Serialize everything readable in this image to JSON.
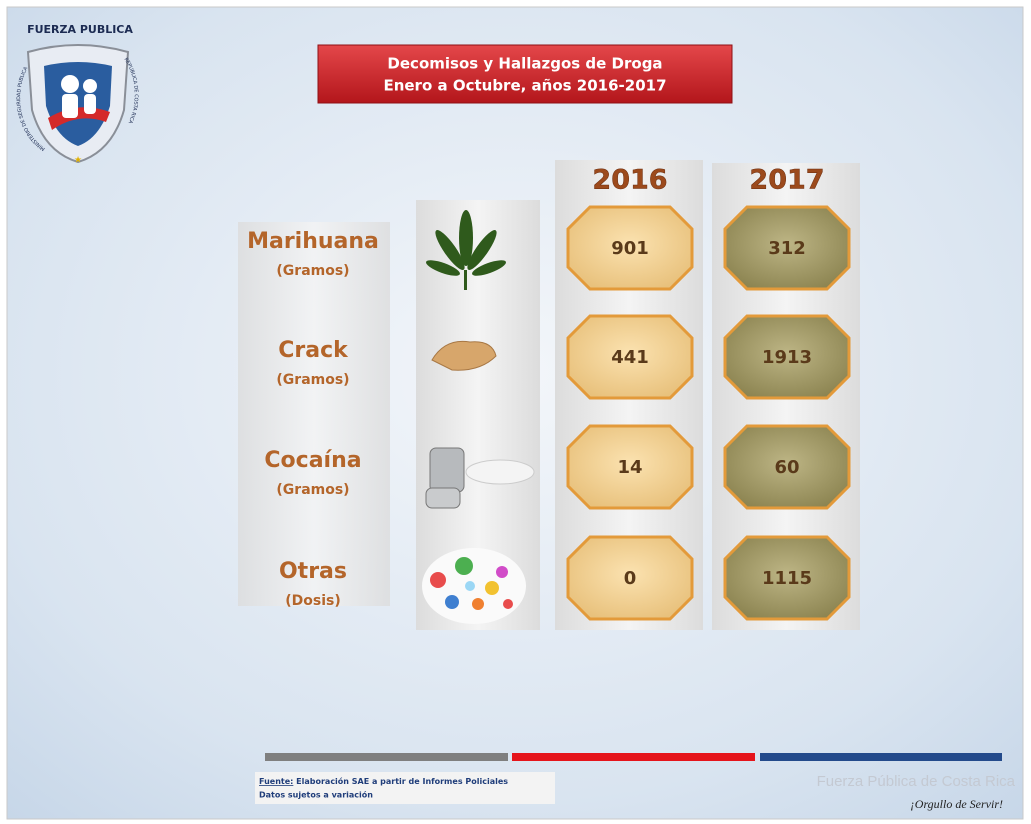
{
  "logo": {
    "title": "FUERZA PUBLICA",
    "ring_left": "MINISTERIO DE SEGURIDAD PUBLICA",
    "ring_right": "REPUBLICA DE COSTA RICA"
  },
  "header": {
    "title_lines": [
      "Decomisos y Hallazgos de Droga",
      "Enero a Octubre, años 2016-2017"
    ]
  },
  "table": {
    "columns": [
      "2016",
      "2017"
    ],
    "rows": [
      {
        "name": "Marihuana",
        "unit": "(Gramos)",
        "values": [
          901,
          312
        ]
      },
      {
        "name": "Crack",
        "unit": "(Gramos)",
        "values": [
          441,
          1913
        ]
      },
      {
        "name": "Cocaína",
        "unit": "(Gramos)",
        "values": [
          14,
          60
        ]
      },
      {
        "name": "Otras",
        "unit": "(Dosis)",
        "values": [
          0,
          1115
        ]
      }
    ]
  },
  "footer": {
    "source_label": "Fuente:",
    "source_text": "Elaboración SAE a partir de Informes Policiales",
    "note": "Datos sujetos a variación",
    "org": "Fuerza Pública de Costa Rica",
    "motto": "¡Orgullo de Servir!"
  }
}
